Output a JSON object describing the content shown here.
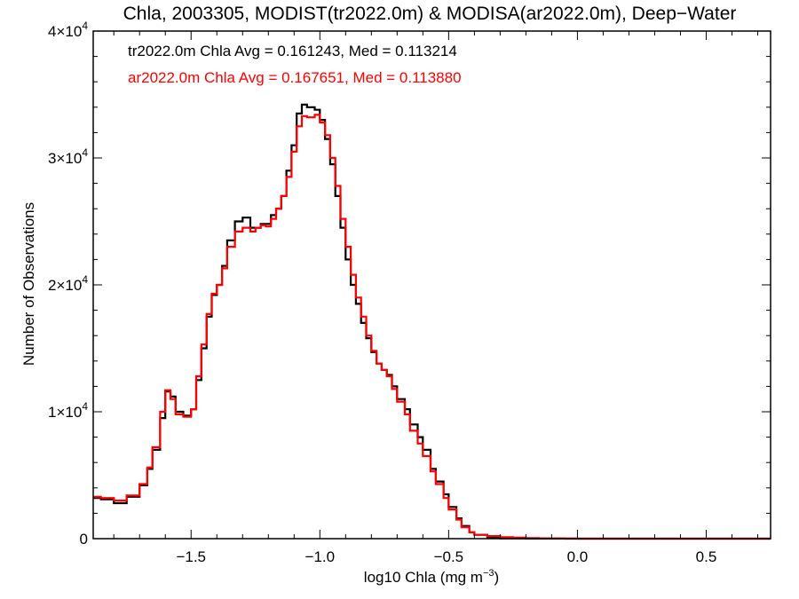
{
  "chart_data": {
    "type": "line",
    "title": "Chla, 2003305, MODIST(tr2022.0m) & MODISA(ar2022.0m), Deep−Water",
    "xlabel": "log10 Chla (mg m",
    "xlabel_exponent": "−3",
    "xlabel_close": ")",
    "ylabel": "Number of Observations",
    "xlim": [
      -1.88,
      0.75
    ],
    "ylim": [
      0,
      40000
    ],
    "x_ticks": [
      {
        "value": -1.5,
        "label": "−1.5"
      },
      {
        "value": -1.0,
        "label": "−1.0"
      },
      {
        "value": -0.5,
        "label": "−0.5"
      },
      {
        "value": 0.0,
        "label": "0.0"
      },
      {
        "value": 0.5,
        "label": "0.5"
      }
    ],
    "y_ticks": [
      {
        "value": 0,
        "mantissa": "0",
        "exponent": ""
      },
      {
        "value": 10000,
        "mantissa": "1×10",
        "exponent": "4"
      },
      {
        "value": 20000,
        "mantissa": "2×10",
        "exponent": "4"
      },
      {
        "value": 30000,
        "mantissa": "3×10",
        "exponent": "4"
      },
      {
        "value": 40000,
        "mantissa": "4×10",
        "exponent": "4"
      }
    ],
    "grid": false,
    "annotations": [
      {
        "text": "tr2022.0m Chla Avg = 0.161243, Med = 0.113214",
        "color": "#000000"
      },
      {
        "text": "ar2022.0m Chla Avg = 0.167651, Med = 0.113880",
        "color": "#ff0000"
      }
    ],
    "series": [
      {
        "color": "#000000",
        "x": [
          -1.88,
          -1.85,
          -1.8,
          -1.75,
          -1.7,
          -1.67,
          -1.65,
          -1.62,
          -1.6,
          -1.58,
          -1.56,
          -1.53,
          -1.5,
          -1.48,
          -1.46,
          -1.44,
          -1.42,
          -1.4,
          -1.38,
          -1.36,
          -1.33,
          -1.3,
          -1.27,
          -1.25,
          -1.23,
          -1.21,
          -1.19,
          -1.17,
          -1.15,
          -1.13,
          -1.11,
          -1.09,
          -1.07,
          -1.05,
          -1.02,
          -1.0,
          -0.98,
          -0.96,
          -0.94,
          -0.92,
          -0.9,
          -0.88,
          -0.86,
          -0.84,
          -0.82,
          -0.8,
          -0.78,
          -0.76,
          -0.74,
          -0.72,
          -0.7,
          -0.67,
          -0.65,
          -0.62,
          -0.6,
          -0.57,
          -0.55,
          -0.52,
          -0.5,
          -0.47,
          -0.45,
          -0.42,
          -0.4,
          -0.35,
          -0.3,
          -0.25,
          -0.2,
          -0.15,
          -0.1,
          -0.05,
          0.0,
          0.05,
          0.1,
          0.2,
          0.3,
          0.4,
          0.5,
          0.6,
          0.75
        ],
        "y": [
          3200,
          3100,
          2800,
          3300,
          4200,
          5500,
          7000,
          9500,
          11600,
          11200,
          10000,
          9700,
          10200,
          12500,
          15000,
          17500,
          19200,
          20000,
          21500,
          23500,
          25000,
          25300,
          24500,
          24500,
          24800,
          24800,
          25500,
          26000,
          27000,
          29000,
          31000,
          33500,
          34200,
          34000,
          33800,
          33000,
          31500,
          29500,
          27000,
          24500,
          22000,
          20000,
          18500,
          17000,
          15800,
          14700,
          13800,
          13300,
          12900,
          12000,
          11000,
          10200,
          9000,
          8000,
          7000,
          5500,
          4500,
          3500,
          2500,
          1600,
          1000,
          500,
          300,
          100,
          30,
          20,
          10,
          5,
          5,
          2,
          0,
          0,
          0,
          0,
          0,
          0,
          0,
          0,
          0
        ]
      },
      {
        "color": "#ff0000",
        "x": [
          -1.88,
          -1.85,
          -1.8,
          -1.75,
          -1.7,
          -1.67,
          -1.65,
          -1.62,
          -1.6,
          -1.58,
          -1.56,
          -1.53,
          -1.5,
          -1.48,
          -1.46,
          -1.44,
          -1.42,
          -1.4,
          -1.38,
          -1.36,
          -1.33,
          -1.3,
          -1.27,
          -1.25,
          -1.23,
          -1.21,
          -1.19,
          -1.17,
          -1.15,
          -1.13,
          -1.11,
          -1.09,
          -1.07,
          -1.05,
          -1.02,
          -1.0,
          -0.98,
          -0.96,
          -0.94,
          -0.92,
          -0.9,
          -0.88,
          -0.86,
          -0.84,
          -0.82,
          -0.8,
          -0.78,
          -0.76,
          -0.74,
          -0.72,
          -0.7,
          -0.67,
          -0.65,
          -0.62,
          -0.6,
          -0.57,
          -0.55,
          -0.52,
          -0.5,
          -0.47,
          -0.45,
          -0.42,
          -0.4,
          -0.35,
          -0.3,
          -0.25,
          -0.2,
          -0.15,
          -0.1,
          -0.05,
          0.0,
          0.05,
          0.1,
          0.2,
          0.3,
          0.4,
          0.5,
          0.6,
          0.75
        ],
        "y": [
          3300,
          3200,
          3000,
          3400,
          4300,
          5600,
          7200,
          10000,
          11700,
          11000,
          9800,
          9600,
          10200,
          12800,
          15300,
          17700,
          19300,
          20000,
          21300,
          23000,
          24200,
          24500,
          24200,
          24500,
          24700,
          24600,
          25200,
          26000,
          27000,
          28500,
          30500,
          32500,
          33300,
          33200,
          33400,
          32800,
          31800,
          30000,
          27800,
          25200,
          23000,
          20800,
          19000,
          17500,
          16000,
          14800,
          13800,
          13300,
          12800,
          11800,
          10800,
          9800,
          8500,
          7500,
          6500,
          5300,
          4300,
          3200,
          2300,
          1500,
          900,
          500,
          300,
          200,
          120,
          80,
          50,
          30,
          20,
          10,
          0,
          0,
          0,
          0,
          0,
          0,
          0,
          0,
          0
        ]
      }
    ]
  }
}
